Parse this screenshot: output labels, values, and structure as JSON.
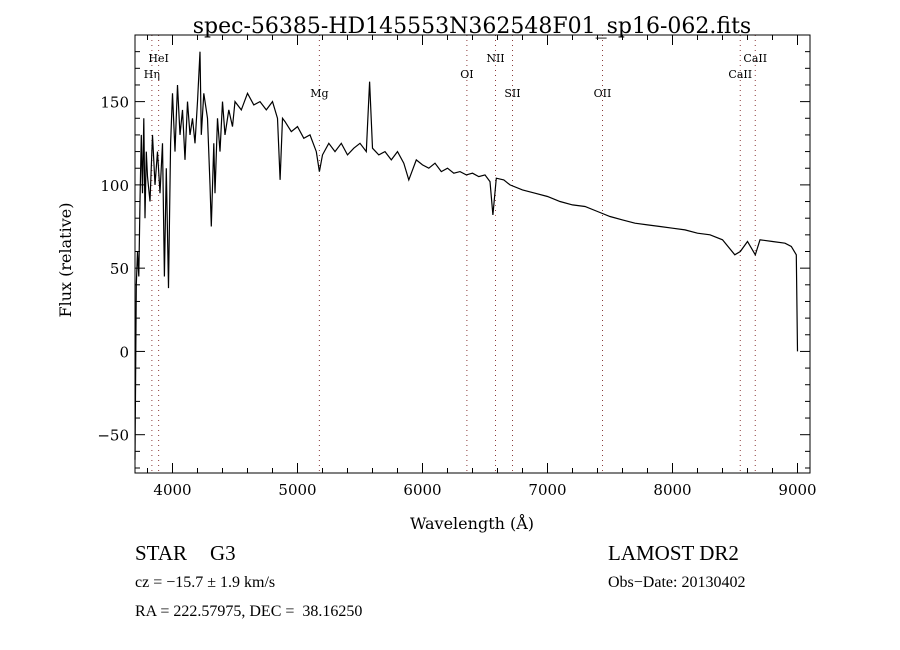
{
  "chart_data": {
    "type": "line",
    "title": "spec-56385-HD145553N362548F01_sp16-062.fits",
    "xlabel": "Wavelength (Å)",
    "ylabel": "Flux (relative)",
    "xlim": [
      3700,
      9100
    ],
    "ylim": [
      -73,
      190
    ],
    "x_ticks": [
      4000,
      5000,
      6000,
      7000,
      8000,
      9000
    ],
    "x_tick_labels": [
      "4000",
      "5000",
      "6000",
      "7000",
      "8000",
      "9000"
    ],
    "y_ticks": [
      -50,
      0,
      50,
      100,
      150
    ],
    "y_tick_labels": [
      "−50",
      "0",
      "50",
      "100",
      "150"
    ],
    "grid": false,
    "series": [
      {
        "name": "spectrum",
        "color": "#000000",
        "x": [
          3700,
          3710,
          3720,
          3730,
          3740,
          3750,
          3760,
          3770,
          3780,
          3790,
          3800,
          3820,
          3840,
          3860,
          3880,
          3900,
          3920,
          3935,
          3950,
          3968,
          3985,
          4000,
          4020,
          4040,
          4060,
          4080,
          4100,
          4120,
          4140,
          4160,
          4180,
          4200,
          4220,
          4230,
          4250,
          4280,
          4300,
          4310,
          4330,
          4340,
          4360,
          4380,
          4400,
          4420,
          4450,
          4480,
          4500,
          4550,
          4600,
          4650,
          4700,
          4750,
          4800,
          4840,
          4861,
          4880,
          4900,
          4950,
          5000,
          5050,
          5100,
          5150,
          5175,
          5200,
          5250,
          5300,
          5350,
          5400,
          5450,
          5500,
          5550,
          5577,
          5600,
          5650,
          5700,
          5750,
          5800,
          5850,
          5890,
          5950,
          6000,
          6050,
          6100,
          6150,
          6200,
          6250,
          6300,
          6350,
          6400,
          6450,
          6500,
          6540,
          6563,
          6590,
          6650,
          6700,
          6800,
          6900,
          7000,
          7100,
          7200,
          7300,
          7400,
          7500,
          7600,
          7700,
          7800,
          7900,
          8000,
          8100,
          8200,
          8300,
          8400,
          8498,
          8542,
          8600,
          8662,
          8700,
          8800,
          8900,
          8950,
          8990,
          9000
        ],
        "y": [
          -65,
          40,
          60,
          45,
          90,
          130,
          95,
          140,
          80,
          120,
          105,
          90,
          130,
          100,
          120,
          95,
          125,
          45,
          110,
          38,
          125,
          155,
          120,
          160,
          130,
          145,
          115,
          150,
          130,
          140,
          125,
          150,
          180,
          130,
          155,
          140,
          100,
          75,
          125,
          95,
          140,
          120,
          150,
          130,
          145,
          135,
          150,
          145,
          155,
          148,
          150,
          145,
          150,
          140,
          103,
          140,
          138,
          132,
          135,
          128,
          130,
          120,
          108,
          118,
          125,
          120,
          125,
          118,
          122,
          125,
          120,
          162,
          122,
          118,
          120,
          115,
          120,
          113,
          103,
          115,
          112,
          110,
          113,
          108,
          110,
          107,
          108,
          106,
          107,
          105,
          106,
          102,
          82,
          104,
          103,
          100,
          97,
          95,
          93,
          90,
          88,
          87,
          84,
          81,
          79,
          77,
          76,
          75,
          74,
          73,
          71,
          70,
          67,
          58,
          60,
          66,
          58,
          67,
          66,
          65,
          63,
          58,
          0
        ]
      }
    ],
    "line_markers": [
      {
        "label": "Hη",
        "wavelength": 3835,
        "row": 2
      },
      {
        "label": "HeI",
        "wavelength": 3889,
        "row": 1
      },
      {
        "label": "Mg",
        "wavelength": 5175,
        "row": 3
      },
      {
        "label": "OI",
        "wavelength": 6355,
        "row": 2
      },
      {
        "label": "NII",
        "wavelength": 6584,
        "row": 1
      },
      {
        "label": "SII",
        "wavelength": 6720,
        "row": 3
      },
      {
        "label": "OII",
        "wavelength": 7440,
        "row": 3
      },
      {
        "label": "CaII",
        "wavelength": 8542,
        "row": 2
      },
      {
        "label": "CaII",
        "wavelength": 8662,
        "row": 1
      }
    ],
    "marker_color": "#8b3a3a"
  },
  "info": {
    "object_class": "STAR",
    "subclass": "G3",
    "survey": "LAMOST DR2",
    "cz": "cz = −15.7 ± 1.9 km/s",
    "obs_date": "Obs−Date: 20130402",
    "coords": "RA = 222.57975, DEC =  38.16250"
  }
}
